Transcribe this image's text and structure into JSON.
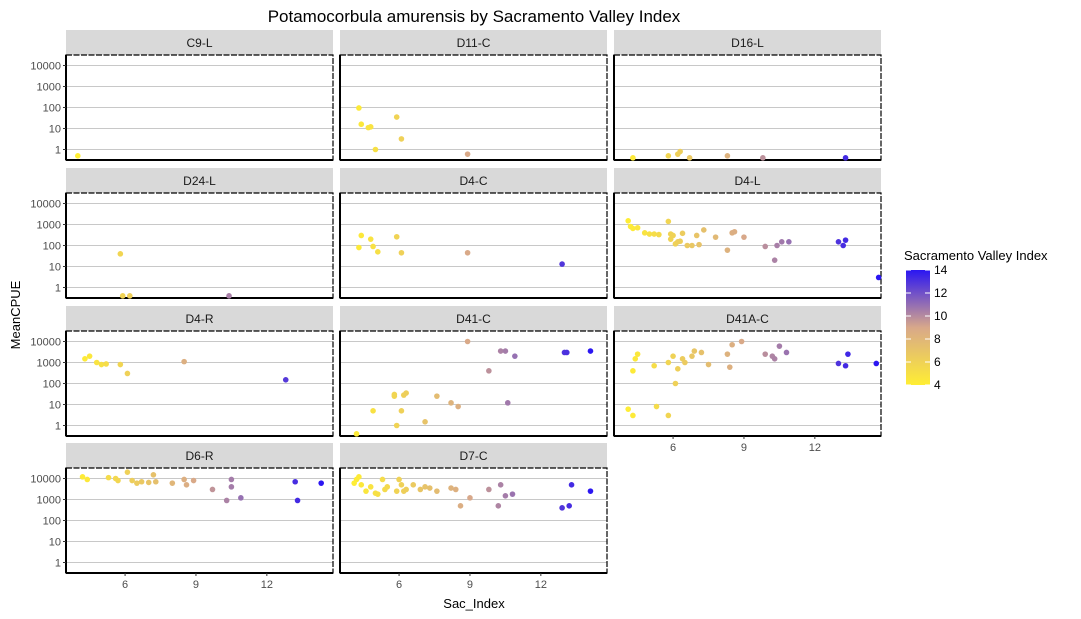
{
  "chart_data": {
    "type": "scatter",
    "title": "Potamocorbula amurensis by Sacramento Valley Index",
    "xlabel": "Sac_Index",
    "ylabel": "MeanCPUE",
    "x_ticks": [
      6,
      9,
      12
    ],
    "y_ticks": [
      1,
      10,
      100,
      1000,
      10000
    ],
    "y_tick_labels": [
      "1",
      "10",
      "100",
      "1000",
      "10000"
    ],
    "xlim": [
      3.5,
      14.8
    ],
    "ylim_log10": [
      -0.5,
      4.5
    ],
    "y_scale": "log10",
    "grid": "major y",
    "legend": {
      "title": "Sacramento Valley Index",
      "placement": "right",
      "ticks": [
        4,
        6,
        8,
        10,
        12,
        14
      ],
      "range": [
        4,
        14
      ],
      "color_low": "#ffee33",
      "color_mid": "#d8a88a",
      "color_high": "#2b16f2"
    },
    "panels": [
      {
        "name": "C9-L",
        "points": [
          [
            4.0,
            0.5
          ]
        ]
      },
      {
        "name": "D11-C",
        "points": [
          [
            4.3,
            95
          ],
          [
            4.4,
            16
          ],
          [
            4.7,
            11
          ],
          [
            4.8,
            12
          ],
          [
            5.0,
            1.0
          ],
          [
            5.9,
            35
          ],
          [
            6.1,
            3.2
          ],
          [
            8.9,
            0.6
          ]
        ]
      },
      {
        "name": "D16-L",
        "points": [
          [
            4.3,
            0.4
          ],
          [
            5.8,
            0.5
          ],
          [
            6.2,
            0.6
          ],
          [
            6.3,
            0.8
          ],
          [
            6.7,
            0.4
          ],
          [
            8.3,
            0.5
          ],
          [
            9.8,
            0.4
          ],
          [
            13.3,
            0.4
          ]
        ]
      },
      {
        "name": "D24-L",
        "points": [
          [
            5.8,
            40
          ],
          [
            5.9,
            0.4
          ],
          [
            6.2,
            0.4
          ],
          [
            10.4,
            0.4
          ]
        ]
      },
      {
        "name": "D4-C",
        "points": [
          [
            4.3,
            80
          ],
          [
            4.4,
            300
          ],
          [
            4.8,
            200
          ],
          [
            4.9,
            90
          ],
          [
            5.1,
            50
          ],
          [
            5.9,
            260
          ],
          [
            6.1,
            45
          ],
          [
            8.9,
            45
          ],
          [
            12.9,
            13
          ]
        ]
      },
      {
        "name": "D4-L",
        "points": [
          [
            4.1,
            1500
          ],
          [
            4.2,
            800
          ],
          [
            4.3,
            650
          ],
          [
            4.5,
            700
          ],
          [
            4.8,
            400
          ],
          [
            5.0,
            350
          ],
          [
            5.2,
            350
          ],
          [
            5.4,
            330
          ],
          [
            5.8,
            1400
          ],
          [
            5.9,
            350
          ],
          [
            5.9,
            200
          ],
          [
            6.0,
            300
          ],
          [
            6.1,
            120
          ],
          [
            6.2,
            150
          ],
          [
            6.3,
            160
          ],
          [
            6.4,
            380
          ],
          [
            6.6,
            100
          ],
          [
            6.8,
            100
          ],
          [
            7.0,
            300
          ],
          [
            7.1,
            110
          ],
          [
            7.3,
            550
          ],
          [
            7.8,
            250
          ],
          [
            8.3,
            60
          ],
          [
            8.5,
            400
          ],
          [
            8.6,
            450
          ],
          [
            9.0,
            250
          ],
          [
            9.9,
            90
          ],
          [
            10.3,
            20
          ],
          [
            10.4,
            100
          ],
          [
            10.6,
            150
          ],
          [
            10.9,
            150
          ],
          [
            13.0,
            150
          ],
          [
            13.2,
            100
          ],
          [
            13.3,
            180
          ],
          [
            14.7,
            3
          ]
        ]
      },
      {
        "name": "D4-R",
        "points": [
          [
            4.3,
            1500
          ],
          [
            4.5,
            2000
          ],
          [
            4.8,
            1000
          ],
          [
            5.0,
            800
          ],
          [
            5.2,
            850
          ],
          [
            5.8,
            800
          ],
          [
            6.1,
            300
          ],
          [
            8.5,
            1100
          ],
          [
            12.8,
            150
          ]
        ]
      },
      {
        "name": "D41-C",
        "points": [
          [
            4.2,
            0.4
          ],
          [
            4.9,
            5
          ],
          [
            5.8,
            30
          ],
          [
            5.8,
            25
          ],
          [
            5.9,
            1.0
          ],
          [
            6.1,
            5
          ],
          [
            6.2,
            28
          ],
          [
            6.3,
            35
          ],
          [
            7.1,
            1.5
          ],
          [
            7.6,
            25
          ],
          [
            8.2,
            12
          ],
          [
            8.5,
            8
          ],
          [
            8.9,
            10000
          ],
          [
            9.8,
            400
          ],
          [
            10.3,
            3500
          ],
          [
            10.5,
            3500
          ],
          [
            10.6,
            12
          ],
          [
            10.9,
            2000
          ],
          [
            13.0,
            3000
          ],
          [
            13.1,
            3000
          ],
          [
            14.1,
            3500
          ]
        ]
      },
      {
        "name": "D41A-C",
        "points": [
          [
            4.1,
            6
          ],
          [
            4.3,
            3
          ],
          [
            4.3,
            400
          ],
          [
            4.4,
            1500
          ],
          [
            4.5,
            2500
          ],
          [
            5.2,
            700
          ],
          [
            5.3,
            8
          ],
          [
            5.8,
            1000
          ],
          [
            5.8,
            3
          ],
          [
            6.0,
            2000
          ],
          [
            6.1,
            100
          ],
          [
            6.2,
            500
          ],
          [
            6.4,
            1500
          ],
          [
            6.5,
            1000
          ],
          [
            6.8,
            2000
          ],
          [
            6.9,
            3500
          ],
          [
            7.2,
            3000
          ],
          [
            7.5,
            800
          ],
          [
            8.3,
            2500
          ],
          [
            8.4,
            600
          ],
          [
            8.5,
            7000
          ],
          [
            8.9,
            10000
          ],
          [
            9.9,
            2500
          ],
          [
            10.2,
            2000
          ],
          [
            10.3,
            1500
          ],
          [
            10.5,
            6000
          ],
          [
            10.8,
            3000
          ],
          [
            13.0,
            900
          ],
          [
            13.3,
            700
          ],
          [
            13.4,
            2500
          ],
          [
            14.6,
            900
          ]
        ]
      },
      {
        "name": "D6-R",
        "points": [
          [
            4.2,
            12000
          ],
          [
            4.4,
            9000
          ],
          [
            5.3,
            11000
          ],
          [
            5.6,
            10000
          ],
          [
            5.7,
            8000
          ],
          [
            6.1,
            20000
          ],
          [
            6.3,
            8000
          ],
          [
            6.5,
            6000
          ],
          [
            6.7,
            7000
          ],
          [
            7.0,
            6500
          ],
          [
            7.2,
            15000
          ],
          [
            7.3,
            7000
          ],
          [
            8.0,
            6000
          ],
          [
            8.5,
            9000
          ],
          [
            8.6,
            5000
          ],
          [
            8.9,
            8000
          ],
          [
            9.7,
            3000
          ],
          [
            10.3,
            900
          ],
          [
            10.5,
            9000
          ],
          [
            10.5,
            4000
          ],
          [
            10.9,
            1200
          ],
          [
            13.2,
            7000
          ],
          [
            13.3,
            900
          ],
          [
            14.3,
            6000
          ]
        ]
      },
      {
        "name": "D7-C",
        "points": [
          [
            4.1,
            6000
          ],
          [
            4.2,
            9000
          ],
          [
            4.3,
            12000
          ],
          [
            4.4,
            5000
          ],
          [
            4.6,
            2500
          ],
          [
            4.8,
            4000
          ],
          [
            5.0,
            2000
          ],
          [
            5.1,
            1800
          ],
          [
            5.3,
            9000
          ],
          [
            5.4,
            3000
          ],
          [
            5.5,
            4000
          ],
          [
            5.9,
            2500
          ],
          [
            6.0,
            9000
          ],
          [
            6.1,
            5000
          ],
          [
            6.2,
            2500
          ],
          [
            6.3,
            3000
          ],
          [
            6.6,
            5000
          ],
          [
            6.9,
            3000
          ],
          [
            7.1,
            4000
          ],
          [
            7.3,
            3500
          ],
          [
            7.6,
            2500
          ],
          [
            8.2,
            3500
          ],
          [
            8.4,
            3000
          ],
          [
            8.6,
            500
          ],
          [
            9.0,
            1200
          ],
          [
            9.8,
            3000
          ],
          [
            10.2,
            500
          ],
          [
            10.3,
            5000
          ],
          [
            10.5,
            1500
          ],
          [
            10.8,
            1800
          ],
          [
            12.9,
            400
          ],
          [
            13.2,
            500
          ],
          [
            13.3,
            5000
          ],
          [
            14.1,
            2500
          ]
        ]
      }
    ]
  }
}
